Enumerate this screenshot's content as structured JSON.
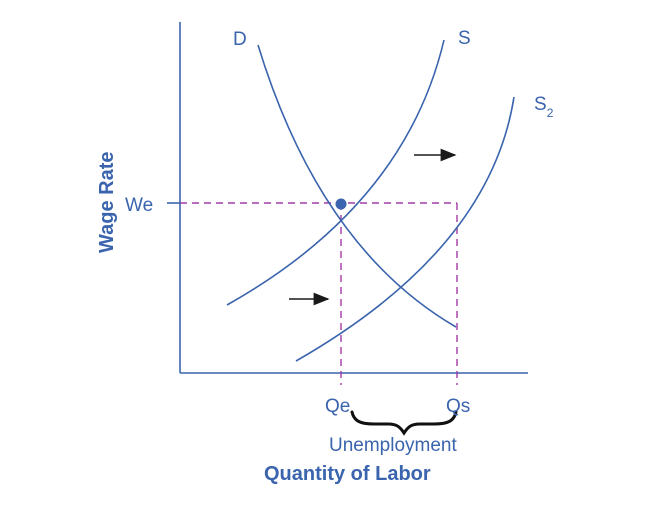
{
  "diagram": {
    "curves": {
      "demand": "D",
      "supply": "S",
      "supply_shifted": "S",
      "supply_shifted_subscript": "2"
    },
    "axes": {
      "y_title": "Wage Rate",
      "x_title": "Quantity of Labor"
    },
    "labels": {
      "equilibrium_wage": "We",
      "equilibrium_quantity": "Qe",
      "supplied_quantity": "Qs",
      "gap": "Unemployment"
    },
    "colors": {
      "curve": "#3a64ad",
      "guide": "#a23aa6",
      "arrow": "#1a1a1a",
      "brace": "#111111"
    }
  }
}
